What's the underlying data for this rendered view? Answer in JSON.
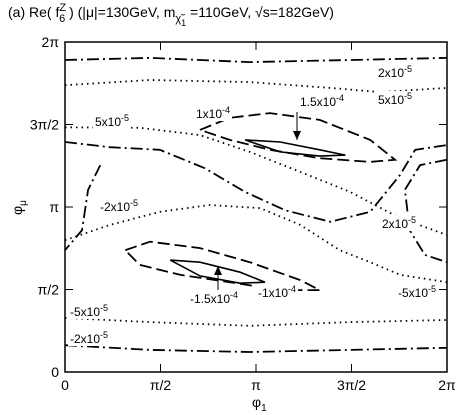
{
  "chart_data": {
    "type": "contour",
    "title": [
      "(a) Re( f",
      "Z",
      "6",
      " ) (|μ|=130GeV, m",
      "χ̃",
      "1",
      " =110GeV, √s=182GeV)"
    ],
    "x_label": [
      "φ",
      "1"
    ],
    "y_label": [
      "φ",
      "μ"
    ],
    "xlim": [
      0,
      6.2832
    ],
    "ylim": [
      0,
      6.2832
    ],
    "xticks": [
      0,
      {
        "value": 1.5708,
        "label": "π/2"
      },
      {
        "value": 3.1416,
        "label": "π"
      },
      {
        "value": 4.7124,
        "label": "3π/2"
      },
      {
        "value": 6.2832,
        "label": "2π"
      }
    ],
    "yticks": [
      0,
      {
        "value": 1.5708,
        "label": "π/2"
      },
      {
        "value": 3.1416,
        "label": "π"
      },
      {
        "value": 4.7124,
        "label": "3π/2"
      },
      {
        "value": 6.2832,
        "label": "2π"
      }
    ],
    "color": "#000000",
    "contours": [
      {
        "level": 2e-05,
        "style": "dashdot",
        "label": [
          "2x10",
          "-5"
        ],
        "x": [
          0,
          1.4,
          3.04,
          4.69,
          6.28
        ],
        "y": [
          5.94,
          5.98,
          5.9,
          5.94,
          5.98
        ]
      },
      {
        "level": 5e-05,
        "style": "dotted",
        "label": [
          "5x10",
          "-5"
        ],
        "x": [
          0,
          1.4,
          3.04,
          4.36,
          5.18,
          6.28
        ],
        "y": [
          5.46,
          5.56,
          5.52,
          5.41,
          5.33,
          5.41
        ]
      },
      {
        "level": 5e-05,
        "style": "dotted",
        "label": [
          "5x10",
          "-5"
        ],
        "x": [
          0,
          1.23,
          2.22,
          3.04,
          3.87,
          4.69,
          5.51,
          6.28
        ],
        "y": [
          4.66,
          4.65,
          4.51,
          4.19,
          3.81,
          3.43,
          2.93,
          2.61
        ]
      },
      {
        "level": -2e-05,
        "style": "dashdot",
        "x": [
          0,
          0.74,
          1.56,
          2.3,
          2.96,
          3.62,
          4.36,
          5.02,
          5.51,
          5.76,
          6.28
        ],
        "y": [
          4.38,
          4.28,
          4.23,
          3.88,
          3.43,
          3.08,
          2.86,
          3.05,
          3.75,
          4.23,
          4.32
        ]
      },
      {
        "level": 2e-05,
        "style": "dashdot",
        "label": [
          "2x10",
          "-5"
        ],
        "x": [
          6.28,
          5.84,
          5.59,
          5.67,
          5.92,
          6.28
        ],
        "y": [
          4.04,
          3.94,
          3.47,
          2.7,
          2.23,
          2.09
        ]
      },
      {
        "level": -5e-05,
        "style": "dotted",
        "label": [
          "-5x10",
          "-5"
        ],
        "x": [
          0,
          0.74,
          1.56,
          2.38,
          3.21,
          3.87,
          4.52,
          5.02,
          5.51,
          6.28
        ],
        "y": [
          2.51,
          2.8,
          3.05,
          3.18,
          3.12,
          2.8,
          2.32,
          2.09,
          1.85,
          1.71
        ]
      },
      {
        "level": -2e-05,
        "style": "dashdot",
        "label": [
          "-2x10",
          "-5"
        ],
        "x": [
          0.58,
          0.38,
          0.28,
          0
        ],
        "y": [
          3.94,
          3.47,
          2.7,
          2.32
        ]
      },
      {
        "level": 0.0001,
        "style": "dashed",
        "label": [
          "1x10",
          "-4"
        ],
        "x": [
          2.22,
          2.71,
          3.37,
          4.19,
          5.02,
          5.43,
          5.02,
          4.19,
          3.37,
          2.71,
          2.22
        ],
        "y": [
          4.61,
          4.84,
          4.93,
          4.8,
          4.42,
          4.04,
          4.0,
          4.07,
          4.23,
          4.42,
          4.61
        ]
      },
      {
        "level": 0.00015,
        "style": "solid",
        "label": [
          "1.5x10",
          "-4"
        ],
        "x": [
          2.96,
          3.54,
          4.19,
          4.61,
          4.19,
          3.54,
          2.96
        ],
        "y": [
          4.42,
          4.38,
          4.23,
          4.13,
          4.11,
          4.19,
          4.42
        ]
      },
      {
        "level": -0.0001,
        "style": "dashed",
        "label": [
          "-1x10",
          "-4"
        ],
        "x": [
          0.99,
          1.4,
          2.22,
          3.04,
          3.87,
          4.19,
          3.54,
          2.71,
          1.89,
          1.23,
          0.99
        ],
        "y": [
          2.32,
          2.48,
          2.36,
          2.09,
          1.75,
          1.56,
          1.56,
          1.71,
          1.85,
          2.04,
          2.32
        ]
      },
      {
        "level": -0.00015,
        "style": "solid",
        "label": [
          "-1.5x10",
          "-4"
        ],
        "x": [
          1.73,
          2.22,
          2.88,
          3.29,
          2.88,
          2.22,
          1.73
        ],
        "y": [
          2.13,
          2.09,
          1.9,
          1.71,
          1.69,
          1.83,
          2.13
        ]
      },
      {
        "level": -5e-05,
        "style": "dotted",
        "label": [
          "-5x10",
          "-5"
        ],
        "x": [
          0,
          1.4,
          3.04,
          4.69,
          6.28
        ],
        "y": [
          1.03,
          0.95,
          0.88,
          0.95,
          0.99
        ]
      },
      {
        "level": -2e-05,
        "style": "dashdot",
        "label": [
          "-2x10",
          "-5"
        ],
        "x": [
          0,
          1.4,
          3.04,
          4.69,
          6.28
        ],
        "y": [
          0.51,
          0.42,
          0.38,
          0.42,
          0.46
        ]
      }
    ]
  }
}
